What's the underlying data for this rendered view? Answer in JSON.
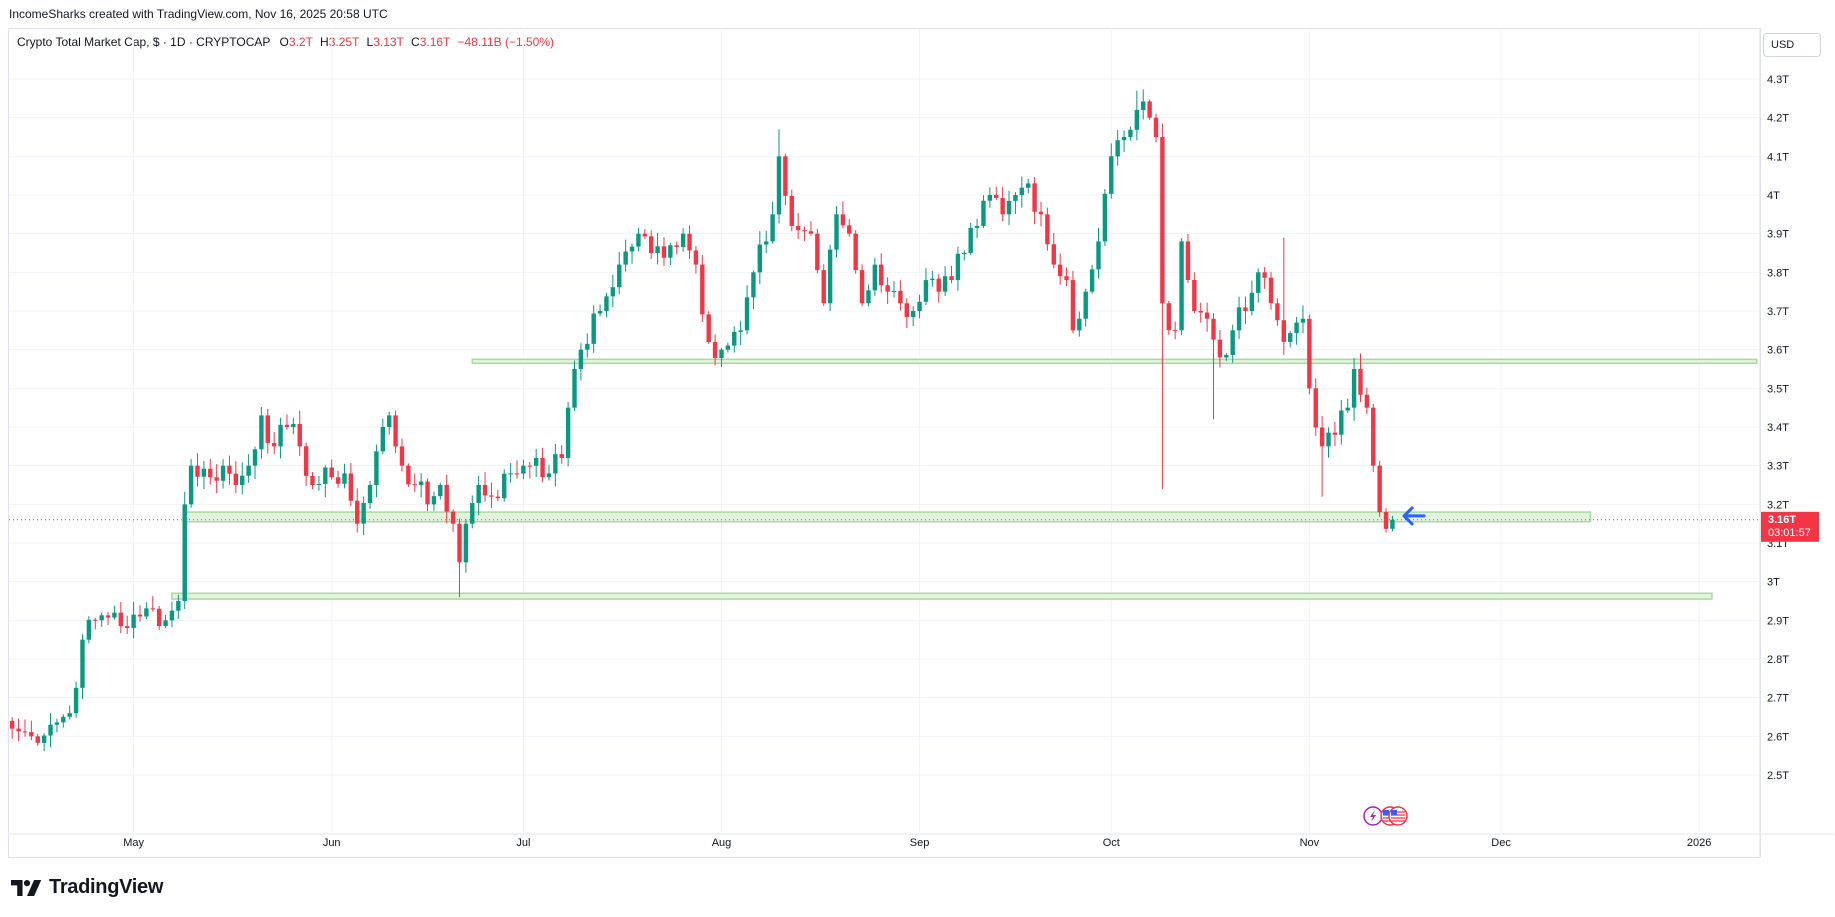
{
  "header": {
    "credit": "IncomeSharks created with TradingView.com, Nov 16, 2025 20:58 UTC"
  },
  "legend": {
    "symbol": "Crypto Total Market Cap, $ · 1D · CRYPTOCAP",
    "open_label": "O",
    "open": "3.2T",
    "high_label": "H",
    "high": "3.25T",
    "low_label": "L",
    "low": "3.13T",
    "close_label": "C",
    "close": "3.16T",
    "change": "−48.11B (−1.50%)"
  },
  "currency_button": "USD",
  "price_badge": {
    "price": "3.16T",
    "countdown": "03:01:57"
  },
  "footer": {
    "brand": "TradingView"
  },
  "colors": {
    "up": "#089981",
    "down": "#f23645",
    "zone_fill": "#e3f3de",
    "zone_stroke": "#a9d8a0",
    "arrow": "#2962ff",
    "grid": "#f0f3fa"
  },
  "icons": [
    "lightning-icon",
    "us-flag-icon",
    "tradingview-logo-icon",
    "arrow-left-icon"
  ],
  "chart_data": {
    "type": "candlestick",
    "title": "Crypto Total Market Cap",
    "interval": "1D",
    "unit": "USD trillions",
    "ylim": [
      2.45,
      4.36
    ],
    "y_ticks": [
      "2.5T",
      "2.6T",
      "2.7T",
      "2.8T",
      "2.9T",
      "3T",
      "3.1T",
      "3.2T",
      "3.3T",
      "3.4T",
      "3.5T",
      "3.6T",
      "3.7T",
      "3.8T",
      "3.9T",
      "4T",
      "4.1T",
      "4.2T",
      "4.3T"
    ],
    "y_tick_values": [
      2.5,
      2.6,
      2.7,
      2.8,
      2.9,
      3.0,
      3.1,
      3.2,
      3.3,
      3.4,
      3.5,
      3.6,
      3.7,
      3.8,
      3.9,
      4.0,
      4.1,
      4.2,
      4.3
    ],
    "x_ticks": [
      "May",
      "Jun",
      "Jul",
      "Aug",
      "Sep",
      "Oct",
      "Nov",
      "Dec",
      "2026"
    ],
    "x_tick_days": [
      20,
      51,
      81,
      112,
      143,
      173,
      204,
      234,
      265
    ],
    "x_range_days": [
      1,
      275
    ],
    "grid": true,
    "current_price": 3.16,
    "zones": [
      {
        "name": "upper-resistance",
        "y_low": 3.565,
        "y_high": 3.575,
        "x_start_day": 73,
        "x_end_day": 274
      },
      {
        "name": "support-zone",
        "y_low": 3.155,
        "y_high": 3.18,
        "x_start_day": 28,
        "x_end_day": 248
      },
      {
        "name": "lower-support",
        "y_low": 2.955,
        "y_high": 2.97,
        "x_start_day": 26,
        "x_end_day": 267
      }
    ],
    "annotation_arrow": {
      "day": 216,
      "y": 3.17
    },
    "anchors": [
      [
        0,
        2.62
      ],
      [
        3,
        2.6
      ],
      [
        6,
        2.63
      ],
      [
        9,
        2.66
      ],
      [
        11,
        2.85
      ],
      [
        13,
        2.9
      ],
      [
        16,
        2.92
      ],
      [
        18,
        2.88
      ],
      [
        20,
        2.91
      ],
      [
        22,
        2.93
      ],
      [
        24,
        2.9
      ],
      [
        26,
        2.95
      ],
      [
        27,
        3.2
      ],
      [
        28,
        3.3
      ],
      [
        31,
        3.27
      ],
      [
        33,
        3.3
      ],
      [
        35,
        3.25
      ],
      [
        37,
        3.3
      ],
      [
        39,
        3.43
      ],
      [
        41,
        3.35
      ],
      [
        43,
        3.4
      ],
      [
        45,
        3.35
      ],
      [
        47,
        3.25
      ],
      [
        50,
        3.27
      ],
      [
        52,
        3.28
      ],
      [
        54,
        3.15
      ],
      [
        56,
        3.25
      ],
      [
        58,
        3.4
      ],
      [
        59,
        3.43
      ],
      [
        61,
        3.3
      ],
      [
        63,
        3.25
      ],
      [
        65,
        3.2
      ],
      [
        67,
        3.25
      ],
      [
        69,
        3.15
      ],
      [
        70,
        3.05
      ],
      [
        71,
        3.15
      ],
      [
        73,
        3.25
      ],
      [
        75,
        3.22
      ],
      [
        78,
        3.28
      ],
      [
        80,
        3.3
      ],
      [
        82,
        3.32
      ],
      [
        84,
        3.28
      ],
      [
        86,
        3.32
      ],
      [
        87,
        3.45
      ],
      [
        88,
        3.55
      ],
      [
        89,
        3.6
      ],
      [
        92,
        3.7
      ],
      [
        95,
        3.82
      ],
      [
        98,
        3.9
      ],
      [
        100,
        3.85
      ],
      [
        103,
        3.87
      ],
      [
        105,
        3.9
      ],
      [
        107,
        3.82
      ],
      [
        109,
        3.62
      ],
      [
        111,
        3.6
      ],
      [
        114,
        3.65
      ],
      [
        116,
        3.8
      ],
      [
        118,
        3.88
      ],
      [
        119,
        3.95
      ],
      [
        120,
        4.1
      ],
      [
        122,
        3.92
      ],
      [
        125,
        3.9
      ],
      [
        127,
        3.72
      ],
      [
        129,
        3.95
      ],
      [
        131,
        3.9
      ],
      [
        133,
        3.72
      ],
      [
        135,
        3.82
      ],
      [
        137,
        3.75
      ],
      [
        139,
        3.72
      ],
      [
        141,
        3.7
      ],
      [
        143,
        3.78
      ],
      [
        145,
        3.75
      ],
      [
        147,
        3.78
      ],
      [
        149,
        3.85
      ],
      [
        151,
        3.92
      ],
      [
        153,
        4.0
      ],
      [
        155,
        3.95
      ],
      [
        157,
        4.0
      ],
      [
        159,
        4.03
      ],
      [
        161,
        3.95
      ],
      [
        163,
        3.82
      ],
      [
        165,
        3.78
      ],
      [
        166,
        3.65
      ],
      [
        168,
        3.75
      ],
      [
        170,
        3.88
      ],
      [
        172,
        4.1
      ],
      [
        174,
        4.15
      ],
      [
        176,
        4.22
      ],
      [
        178,
        4.2
      ],
      [
        179,
        4.15
      ],
      [
        180,
        3.72
      ],
      [
        182,
        3.65
      ],
      [
        183,
        3.88
      ],
      [
        185,
        3.7
      ],
      [
        187,
        3.68
      ],
      [
        189,
        3.58
      ],
      [
        191,
        3.65
      ],
      [
        193,
        3.7
      ],
      [
        195,
        3.8
      ],
      [
        197,
        3.72
      ],
      [
        199,
        3.62
      ],
      [
        201,
        3.67
      ],
      [
        202,
        3.68
      ],
      [
        203,
        3.5
      ],
      [
        205,
        3.35
      ],
      [
        207,
        3.38
      ],
      [
        209,
        3.45
      ],
      [
        210,
        3.55
      ],
      [
        212,
        3.45
      ],
      [
        213,
        3.3
      ],
      [
        214,
        3.18
      ],
      [
        216,
        3.16
      ]
    ]
  }
}
